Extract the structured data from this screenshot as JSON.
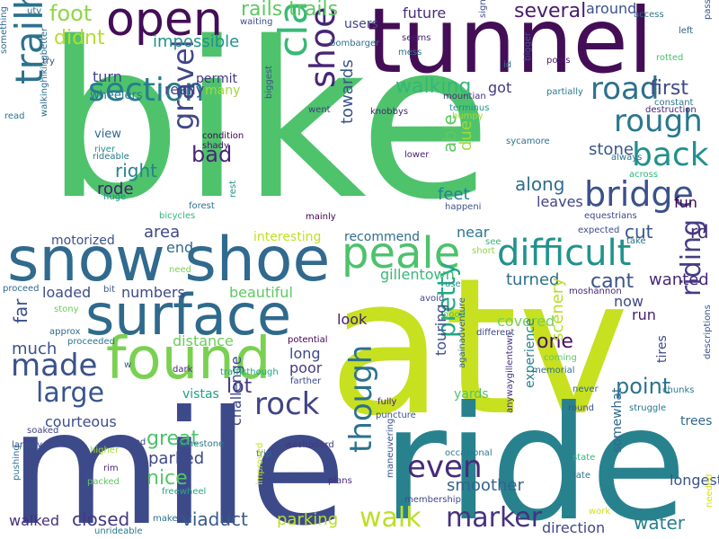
{
  "palette": [
    "#44015a",
    "#3b528b",
    "#21908d",
    "#5dc863",
    "#fde725"
  ],
  "words": [
    {
      "text": "bike",
      "color": "#4ec36c",
      "size": "large"
    },
    {
      "text": "atv",
      "color": "#c7e020",
      "size": "large"
    },
    {
      "text": "mile",
      "color": "#3d4a8a",
      "size": "large"
    },
    {
      "text": "ride",
      "color": "#27828e",
      "size": "large"
    },
    {
      "text": "tunnel",
      "color": "#440e57",
      "size": "large"
    },
    {
      "text": "snow shoe",
      "color": "#306a8e",
      "size": "large"
    },
    {
      "text": "surface",
      "color": "#2f6a8d",
      "size": "large"
    },
    {
      "text": "found",
      "color": "#7ad151",
      "size": "large"
    },
    {
      "text": "open",
      "color": "#440e57",
      "size": "medium"
    },
    {
      "text": "clarence",
      "color": "#38b977",
      "size": "medium"
    },
    {
      "text": "trailhead",
      "color": "#2c728e",
      "size": "medium"
    },
    {
      "text": "shoe rail",
      "color": "#482576",
      "size": "medium"
    },
    {
      "text": "peale",
      "color": "#4cc26c",
      "size": "medium"
    },
    {
      "text": "difficult",
      "color": "#20938c",
      "size": "medium"
    },
    {
      "text": "section",
      "color": "#287c8e",
      "size": "medium"
    },
    {
      "text": "bridge",
      "color": "#3b518b",
      "size": "medium"
    },
    {
      "text": "rough",
      "color": "#2a788e",
      "size": "medium"
    },
    {
      "text": "back",
      "color": "#21908d",
      "size": "medium"
    },
    {
      "text": "road",
      "color": "#2d708e",
      "size": "medium"
    },
    {
      "text": "made",
      "color": "#3a528b",
      "size": "medium"
    },
    {
      "text": "large",
      "color": "#39558c",
      "size": "medium"
    },
    {
      "text": "rock",
      "color": "#414487",
      "size": "medium"
    },
    {
      "text": "gravel",
      "color": "#3f4788",
      "size": "medium"
    },
    {
      "text": "walk",
      "color": "#bddf26",
      "size": "medium"
    },
    {
      "text": "marker",
      "color": "#46327e",
      "size": "medium"
    },
    {
      "text": "even",
      "color": "#472a7a",
      "size": "medium"
    },
    {
      "text": "riding",
      "color": "#433e85",
      "size": "medium"
    },
    {
      "text": "though",
      "color": "#2c728e",
      "size": "medium"
    },
    {
      "text": "pretty",
      "color": "#22a884",
      "size": "medium"
    },
    {
      "text": "first",
      "color": "#3e4989",
      "size": "small"
    },
    {
      "text": "walking",
      "color": "#35b779",
      "size": "small"
    },
    {
      "text": "several",
      "color": "#481b6d",
      "size": "small"
    },
    {
      "text": "rails trails",
      "color": "#5ec962",
      "size": "small"
    },
    {
      "text": "foot",
      "color": "#8fd744",
      "size": "small"
    },
    {
      "text": "didnt",
      "color": "#b5de2b",
      "size": "small"
    },
    {
      "text": "impossible",
      "color": "#21918c",
      "size": "small"
    },
    {
      "text": "turn",
      "color": "#404387",
      "size": "small"
    },
    {
      "text": "permit",
      "color": "#453581",
      "size": "small"
    },
    {
      "text": "wheelers",
      "color": "#2a788e",
      "size": "small"
    },
    {
      "text": "really",
      "color": "#404387",
      "size": "small"
    },
    {
      "text": "many",
      "color": "#a0da39",
      "size": "small"
    },
    {
      "text": "bad",
      "color": "#482576",
      "size": "small"
    },
    {
      "text": "right",
      "color": "#25838e",
      "size": "small"
    },
    {
      "text": "rode",
      "color": "#481f70",
      "size": "small"
    },
    {
      "text": "view",
      "color": "#31688e",
      "size": "small"
    },
    {
      "text": "towards",
      "color": "#3a548c",
      "size": "small"
    },
    {
      "text": "able",
      "color": "#5ec962",
      "size": "small"
    },
    {
      "text": "due",
      "color": "#9bd93c",
      "size": "small"
    },
    {
      "text": "along",
      "color": "#2e6e8e",
      "size": "small"
    },
    {
      "text": "feet",
      "color": "#26818e",
      "size": "small"
    },
    {
      "text": "leaves",
      "color": "#414487",
      "size": "small"
    },
    {
      "text": "cut",
      "color": "#39568c",
      "size": "small"
    },
    {
      "text": "rd",
      "color": "#472d7b",
      "size": "small"
    },
    {
      "text": "stone",
      "color": "#39568c",
      "size": "small"
    },
    {
      "text": "fun",
      "color": "#440154",
      "size": "small"
    },
    {
      "text": "got",
      "color": "#453781",
      "size": "small"
    },
    {
      "text": "area",
      "color": "#3f4788",
      "size": "small"
    },
    {
      "text": "end",
      "color": "#31688e",
      "size": "small"
    },
    {
      "text": "interesting",
      "color": "#c2df23",
      "size": "small"
    },
    {
      "text": "recommend",
      "color": "#2f6c8e",
      "size": "small"
    },
    {
      "text": "motorized",
      "color": "#3b518b",
      "size": "small"
    },
    {
      "text": "near",
      "color": "#2a768e",
      "size": "small"
    },
    {
      "text": "gillentown",
      "color": "#37b878",
      "size": "small"
    },
    {
      "text": "cant",
      "color": "#3b528b",
      "size": "small"
    },
    {
      "text": "wanted",
      "color": "#482979",
      "size": "small"
    },
    {
      "text": "turned",
      "color": "#2e6f8e",
      "size": "small"
    },
    {
      "text": "loaded",
      "color": "#3d4e8a",
      "size": "small"
    },
    {
      "text": "numbers",
      "color": "#3e4989",
      "size": "small"
    },
    {
      "text": "beautiful",
      "color": "#5ec962",
      "size": "small"
    },
    {
      "text": "now",
      "color": "#3f4889",
      "size": "small"
    },
    {
      "text": "run",
      "color": "#481c6e",
      "size": "small"
    },
    {
      "text": "far",
      "color": "#3c4f8a",
      "size": "small"
    },
    {
      "text": "look",
      "color": "#482071",
      "size": "small"
    },
    {
      "text": "distance",
      "color": "#6ccd5a",
      "size": "small"
    },
    {
      "text": "one",
      "color": "#471063",
      "size": "small"
    },
    {
      "text": "covered",
      "color": "#73d056",
      "size": "small"
    },
    {
      "text": "scenery",
      "color": "#b8de29",
      "size": "small"
    },
    {
      "text": "much",
      "color": "#3b518b",
      "size": "small"
    },
    {
      "text": "lot",
      "color": "#453882",
      "size": "small"
    },
    {
      "text": "long",
      "color": "#3e4989",
      "size": "small"
    },
    {
      "text": "poor",
      "color": "#443b84",
      "size": "small"
    },
    {
      "text": "touring",
      "color": "#3e4c8a",
      "size": "small"
    },
    {
      "text": "point",
      "color": "#2c738e",
      "size": "small"
    },
    {
      "text": "vistas",
      "color": "#1fa088",
      "size": "small"
    },
    {
      "text": "courteous",
      "color": "#3c4f8a",
      "size": "small"
    },
    {
      "text": "great",
      "color": "#4cc26c",
      "size": "small"
    },
    {
      "text": "parked",
      "color": "#3f4889",
      "size": "small"
    },
    {
      "text": "challenge",
      "color": "#3f4889",
      "size": "small"
    },
    {
      "text": "nice",
      "color": "#56c667",
      "size": "small"
    },
    {
      "text": "yards",
      "color": "#50c46a",
      "size": "small"
    },
    {
      "text": "experience",
      "color": "#26828e",
      "size": "small"
    },
    {
      "text": "smoother",
      "color": "#33638d",
      "size": "small"
    },
    {
      "text": "longest",
      "color": "#3b528b",
      "size": "small"
    },
    {
      "text": "walked",
      "color": "#472f7d",
      "size": "small"
    },
    {
      "text": "closed",
      "color": "#443983",
      "size": "small"
    },
    {
      "text": "viaduct",
      "color": "#38598c",
      "size": "small"
    },
    {
      "text": "parking",
      "color": "#b8de29",
      "size": "small"
    },
    {
      "text": "direction",
      "color": "#3f4788",
      "size": "small"
    },
    {
      "text": "water",
      "color": "#27808e",
      "size": "small"
    },
    {
      "text": "somewhat",
      "color": "#30698e",
      "size": "small"
    },
    {
      "text": "trees",
      "color": "#31678e",
      "size": "small"
    },
    {
      "text": "tires",
      "color": "#3e4a89",
      "size": "small"
    },
    {
      "text": "future",
      "color": "#472c7a",
      "size": "small"
    },
    {
      "text": "around",
      "color": "#3b518b",
      "size": "small"
    },
    {
      "text": "users",
      "color": "#404588",
      "size": "small"
    },
    {
      "text": "bombarger",
      "color": "#2b748e",
      "size": "tiny"
    },
    {
      "text": "waiting",
      "color": "#3d4d8a",
      "size": "tiny"
    },
    {
      "text": "seems",
      "color": "#481d6f",
      "size": "tiny"
    },
    {
      "text": "mess",
      "color": "#2d718e",
      "size": "tiny"
    },
    {
      "text": "significantly",
      "color": "#3e4c8a",
      "size": "tiny"
    },
    {
      "text": "access",
      "color": "#2a768e",
      "size": "tiny"
    },
    {
      "text": "left",
      "color": "#34618d",
      "size": "tiny"
    },
    {
      "text": "passable",
      "color": "#3b528b",
      "size": "tiny"
    },
    {
      "text": "rotted",
      "color": "#4ac16d",
      "size": "tiny"
    },
    {
      "text": "pools",
      "color": "#481a6c",
      "size": "tiny"
    },
    {
      "text": "partially",
      "color": "#2a788e",
      "size": "tiny"
    },
    {
      "text": "id",
      "color": "#2a778e",
      "size": "tiny"
    },
    {
      "text": "bigger",
      "color": "#3b528b",
      "size": "tiny"
    },
    {
      "text": "mountian",
      "color": "#472f7d",
      "size": "tiny"
    },
    {
      "text": "terminus",
      "color": "#21918c",
      "size": "tiny"
    },
    {
      "text": "bumpy",
      "color": "#a2da37",
      "size": "tiny"
    },
    {
      "text": "constant",
      "color": "#2b758e",
      "size": "tiny"
    },
    {
      "text": "destruction",
      "color": "#482475",
      "size": "tiny"
    },
    {
      "text": "knobbys",
      "color": "#482475",
      "size": "tiny"
    },
    {
      "text": "went",
      "color": "#443a83",
      "size": "tiny"
    },
    {
      "text": "biggest",
      "color": "#3b528b",
      "size": "tiny"
    },
    {
      "text": "sycamore",
      "color": "#2c728e",
      "size": "tiny"
    },
    {
      "text": "lower",
      "color": "#482173",
      "size": "tiny"
    },
    {
      "text": "always",
      "color": "#2b748e",
      "size": "tiny"
    },
    {
      "text": "across",
      "color": "#31b57b",
      "size": "tiny"
    },
    {
      "text": "condition",
      "color": "#440154",
      "size": "tiny"
    },
    {
      "text": "shady",
      "color": "#471164",
      "size": "tiny"
    },
    {
      "text": "river",
      "color": "#20928c",
      "size": "tiny"
    },
    {
      "text": "rideable",
      "color": "#2a788e",
      "size": "tiny"
    },
    {
      "text": "huge",
      "color": "#21908d",
      "size": "tiny"
    },
    {
      "text": "walkinghikingbetter",
      "color": "#2d708e",
      "size": "tiny"
    },
    {
      "text": "forest",
      "color": "#2d718e",
      "size": "tiny"
    },
    {
      "text": "bicycles",
      "color": "#34b679",
      "size": "tiny"
    },
    {
      "text": "rest",
      "color": "#21918c",
      "size": "tiny"
    },
    {
      "text": "mainly",
      "color": "#440154",
      "size": "tiny"
    },
    {
      "text": "happeni",
      "color": "#3b528b",
      "size": "tiny"
    },
    {
      "text": "equestrians",
      "color": "#3f4788",
      "size": "tiny"
    },
    {
      "text": "expected",
      "color": "#3e4c8a",
      "size": "tiny"
    },
    {
      "text": "take",
      "color": "#2c728e",
      "size": "tiny"
    },
    {
      "text": "see",
      "color": "#31b57b",
      "size": "tiny"
    },
    {
      "text": "short",
      "color": "#8ed645",
      "size": "tiny"
    },
    {
      "text": "use",
      "color": "#21918c",
      "size": "tiny"
    },
    {
      "text": "avoid",
      "color": "#3e4a89",
      "size": "tiny"
    },
    {
      "text": "moshannon",
      "color": "#482575",
      "size": "tiny"
    },
    {
      "text": "good",
      "color": "#4ac16d",
      "size": "tiny"
    },
    {
      "text": "need",
      "color": "#7ad151",
      "size": "tiny"
    },
    {
      "text": "proceed",
      "color": "#31688e",
      "size": "tiny"
    },
    {
      "text": "bit",
      "color": "#38598c",
      "size": "tiny"
    },
    {
      "text": "stony",
      "color": "#6ccd5a",
      "size": "tiny"
    },
    {
      "text": "approx",
      "color": "#31688e",
      "size": "tiny"
    },
    {
      "text": "proceeded",
      "color": "#2a788e",
      "size": "tiny"
    },
    {
      "text": "potential",
      "color": "#440154",
      "size": "tiny"
    },
    {
      "text": "different",
      "color": "#3e4989",
      "size": "tiny"
    },
    {
      "text": "againadventure",
      "color": "#33628d",
      "size": "tiny"
    },
    {
      "text": "coming",
      "color": "#5ec962",
      "size": "tiny"
    },
    {
      "text": "memorial",
      "color": "#2d708e",
      "size": "tiny"
    },
    {
      "text": "descriptions",
      "color": "#3b528b",
      "size": "tiny"
    },
    {
      "text": "chunks",
      "color": "#2a788e",
      "size": "tiny"
    },
    {
      "text": "never",
      "color": "#31688e",
      "size": "tiny"
    },
    {
      "text": "w",
      "color": "#3b528b",
      "size": "tiny"
    },
    {
      "text": "dark",
      "color": "#482878",
      "size": "tiny"
    },
    {
      "text": "trafficthough",
      "color": "#1fa088",
      "size": "tiny"
    },
    {
      "text": "farther",
      "color": "#3e4c8a",
      "size": "tiny"
    },
    {
      "text": "fully",
      "color": "#482173",
      "size": "tiny"
    },
    {
      "text": "puncture",
      "color": "#3b528b",
      "size": "tiny"
    },
    {
      "text": "anywaygillentown",
      "color": "#46337f",
      "size": "tiny"
    },
    {
      "text": "round",
      "color": "#3b528b",
      "size": "tiny"
    },
    {
      "text": "struggle",
      "color": "#2a788e",
      "size": "tiny"
    },
    {
      "text": "soaked",
      "color": "#3f4788",
      "size": "tiny"
    },
    {
      "text": "largely",
      "color": "#3b528b",
      "size": "tiny"
    },
    {
      "text": "based",
      "color": "#3e4989",
      "size": "tiny"
    },
    {
      "text": "limestone",
      "color": "#2a788e",
      "size": "tiny"
    },
    {
      "text": "washboard",
      "color": "#453781",
      "size": "tiny"
    },
    {
      "text": "trip",
      "color": "#31688e",
      "size": "tiny"
    },
    {
      "text": "occasional",
      "color": "#2a788e",
      "size": "tiny"
    },
    {
      "text": "higher",
      "color": "#a2da37",
      "size": "tiny"
    },
    {
      "text": "rim",
      "color": "#482677",
      "size": "tiny"
    },
    {
      "text": "pushing",
      "color": "#2d708e",
      "size": "tiny"
    },
    {
      "text": "packed",
      "color": "#5ec962",
      "size": "tiny"
    },
    {
      "text": "freewheel",
      "color": "#22a884",
      "size": "tiny"
    },
    {
      "text": "improved",
      "color": "#c2df23",
      "size": "tiny"
    },
    {
      "text": "plans",
      "color": "#482979",
      "size": "tiny"
    },
    {
      "text": "maneuvering",
      "color": "#3b528b",
      "size": "tiny"
    },
    {
      "text": "membership",
      "color": "#3e4989",
      "size": "tiny"
    },
    {
      "text": "state",
      "color": "#35b779",
      "size": "tiny"
    },
    {
      "text": "late",
      "color": "#2c728e",
      "size": "tiny"
    },
    {
      "text": "work",
      "color": "#d2e21b",
      "size": "tiny"
    },
    {
      "text": "needed",
      "color": "#d8e219",
      "size": "tiny"
    },
    {
      "text": "make",
      "color": "#2d718e",
      "size": "tiny"
    },
    {
      "text": "unrideable",
      "color": "#2a788e",
      "size": "tiny"
    },
    {
      "text": "utv",
      "color": "#31688e",
      "size": "tiny"
    },
    {
      "text": "try",
      "color": "#3e4989",
      "size": "tiny"
    },
    {
      "text": "something",
      "color": "#31688e",
      "size": "tiny"
    },
    {
      "text": "read",
      "color": "#2d708e",
      "size": "tiny"
    }
  ]
}
